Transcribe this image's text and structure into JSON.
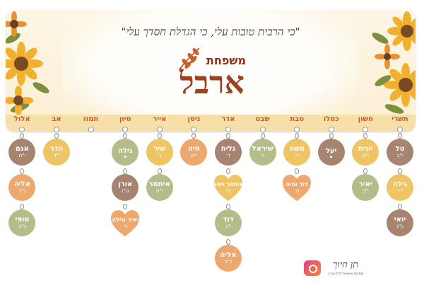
{
  "header": {
    "quote": "\"כי הרבית טובות עלי, כי הגדלת חסדך עלי\"",
    "family_label": "משפחת",
    "family_name": "ארבל"
  },
  "colors": {
    "brown": "#a68470",
    "yellow": "#efc464",
    "sage": "#b4bd8a",
    "orange": "#eda86d",
    "month_text": "#b9602b",
    "title": "#a0401f"
  },
  "months": [
    {
      "name": "תשרי",
      "people": [
        {
          "name": "טל",
          "date": "י\"ב",
          "color": "brown",
          "shape": "circle"
        },
        {
          "name": "גילה",
          "date": "י\"ד",
          "color": "yellow",
          "shape": "circle"
        },
        {
          "name": "יואי",
          "date": "כ\"ג",
          "color": "brown",
          "shape": "circle"
        }
      ]
    },
    {
      "name": "חשון",
      "people": [
        {
          "name": "יונית",
          "date": "י\"א",
          "color": "yellow",
          "shape": "circle"
        },
        {
          "name": "יאיר",
          "date": "י\"ב",
          "color": "sage",
          "shape": "circle"
        }
      ]
    },
    {
      "name": "כסלו",
      "people": [
        {
          "name": "יעל",
          "date": "",
          "color": "brown",
          "shape": "circle"
        }
      ]
    },
    {
      "name": "טבת",
      "people": [
        {
          "name": "משה",
          "date": "ד'",
          "color": "yellow",
          "shape": "circle"
        },
        {
          "name": "דוד וחיה",
          "date": "ח'",
          "color": "orange",
          "shape": "heart"
        }
      ]
    },
    {
      "name": "שבט",
      "people": [
        {
          "name": "שיראל",
          "date": "כ'",
          "color": "sage",
          "shape": "circle"
        }
      ]
    },
    {
      "name": "אדר",
      "people": [
        {
          "name": "גלית",
          "date": "ד'",
          "color": "brown",
          "shape": "circle"
        },
        {
          "name": "איתמר ושיר",
          "date": "ט'",
          "color": "yellow",
          "shape": "heart"
        },
        {
          "name": "דוד",
          "date": "י\"ב",
          "color": "sage",
          "shape": "circle"
        },
        {
          "name": "אליה",
          "date": "כ\"ד",
          "color": "orange",
          "shape": "circle"
        }
      ]
    },
    {
      "name": "ניסן",
      "people": [
        {
          "name": "חיה",
          "date": "י\"ט",
          "color": "orange",
          "shape": "circle"
        }
      ]
    },
    {
      "name": "אייר",
      "people": [
        {
          "name": "שיר",
          "date": "ב'",
          "color": "yellow",
          "shape": "circle"
        },
        {
          "name": "איתמר",
          "date": "י\"ח",
          "color": "sage",
          "shape": "circle"
        }
      ]
    },
    {
      "name": "סיון",
      "people": [
        {
          "name": "גילה",
          "date": "",
          "color": "sage",
          "shape": "circle"
        },
        {
          "name": "אורן",
          "date": "ט\"ז",
          "color": "brown",
          "shape": "circle"
        },
        {
          "name": "יאיר וגילה",
          "date": "ד'",
          "color": "orange",
          "shape": "heart"
        }
      ]
    },
    {
      "name": "תמוז",
      "people": []
    },
    {
      "name": "אב",
      "people": [
        {
          "name": "הדר",
          "date": "י\"ד",
          "color": "yellow",
          "shape": "circle"
        }
      ]
    },
    {
      "name": "אלול",
      "people": [
        {
          "name": "אגם",
          "date": "י\"ח",
          "color": "brown",
          "shape": "circle"
        },
        {
          "name": "אליה",
          "date": "כ\"ד",
          "color": "orange",
          "shape": "circle"
        },
        {
          "name": "סופי",
          "date": "כ\"ב",
          "color": "sage",
          "shape": "circle"
        }
      ]
    }
  ],
  "logo": {
    "icon": "camera-icon",
    "title": "תן חיוך",
    "subtitle": "מתנות אישיות לכל צורך"
  }
}
